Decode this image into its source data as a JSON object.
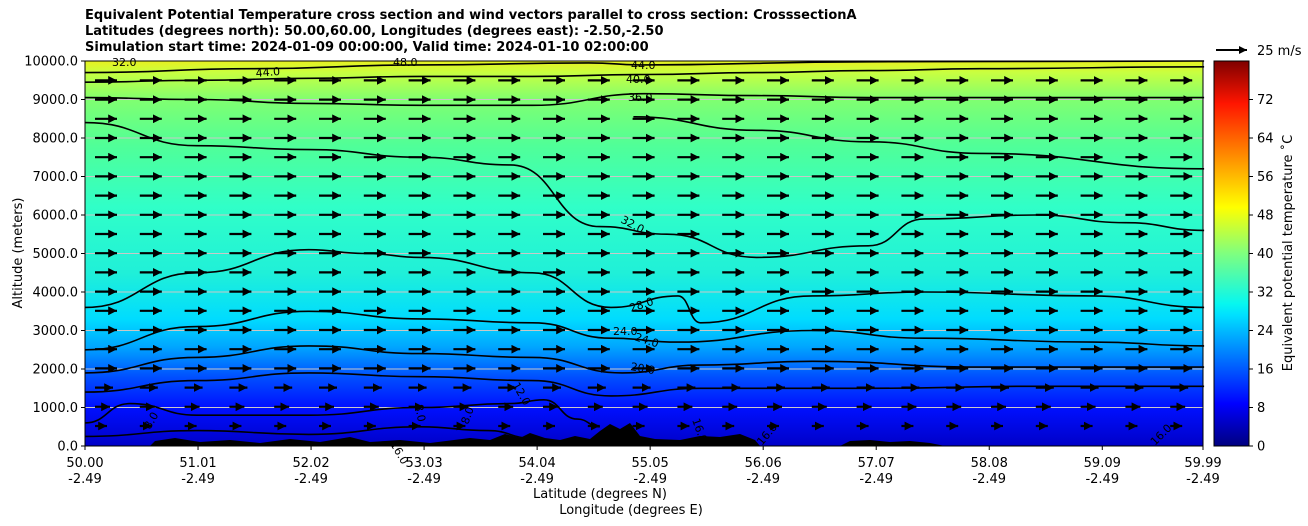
{
  "title_lines": [
    "Equivalent Potential Temperature cross section and wind vectors parallel to cross section: CrosssectionA",
    "Latitudes (degrees north): 50.00,60.00, Longitudes (degrees east): -2.50,-2.50",
    "Simulation start time: 2024-01-09 00:00:00, Valid time: 2024-01-10 02:00:00"
  ],
  "chart_data": {
    "type": "heatmap",
    "ylabel": "Altitude (meters)",
    "xlabel_lines": [
      "Latitude (degrees N)",
      "Longitude (degrees E)"
    ],
    "ylim": [
      0,
      10000
    ],
    "yticks": [
      "0.0",
      "1000.0",
      "2000.0",
      "3000.0",
      "4000.0",
      "5000.0",
      "6000.0",
      "7000.0",
      "8000.0",
      "9000.0",
      "10000.0"
    ],
    "xticks": [
      {
        "lat": "50.00",
        "lon": "-2.49"
      },
      {
        "lat": "51.01",
        "lon": "-2.49"
      },
      {
        "lat": "52.02",
        "lon": "-2.49"
      },
      {
        "lat": "53.03",
        "lon": "-2.49"
      },
      {
        "lat": "54.04",
        "lon": "-2.49"
      },
      {
        "lat": "55.05",
        "lon": "-2.49"
      },
      {
        "lat": "56.06",
        "lon": "-2.49"
      },
      {
        "lat": "57.07",
        "lon": "-2.49"
      },
      {
        "lat": "58.08",
        "lon": "-2.49"
      },
      {
        "lat": "59.09",
        "lon": "-2.49"
      },
      {
        "lat": "59.99",
        "lon": "-2.49"
      }
    ],
    "grid": "horizontal",
    "colorbar": {
      "label": "Equivalent potential temperature ˚C",
      "range": [
        0,
        80
      ],
      "ticks": [
        "0",
        "8",
        "16",
        "24",
        "32",
        "40",
        "48",
        "56",
        "64",
        "72"
      ],
      "colormap": "jet"
    },
    "wind_key": {
      "label": "25 m/s",
      "direction": "parallel to cross section"
    },
    "contour_labels": [
      "32.0",
      "44.0",
      "48.0",
      "44.0",
      "40.0",
      "36.0",
      "32.0",
      "28.0",
      "24.0",
      "24.0",
      "20.0",
      "12.0",
      "8.0",
      "8.0",
      "8.0",
      "16.0",
      "16.0",
      "16.0",
      "16.0"
    ],
    "contours": [
      {
        "level": 44,
        "points": [
          [
            50.0,
            9700
          ],
          [
            51.5,
            9800
          ],
          [
            53.0,
            9900
          ],
          [
            54.5,
            9950
          ],
          [
            55.0,
            9900
          ],
          [
            57.0,
            9980
          ],
          [
            60.0,
            10000
          ]
        ]
      },
      {
        "level": 40,
        "points": [
          [
            50.0,
            9450
          ],
          [
            51.0,
            9500
          ],
          [
            52.0,
            9550
          ],
          [
            53.0,
            9600
          ],
          [
            54.0,
            9600
          ],
          [
            55.0,
            9650
          ],
          [
            56.0,
            9700
          ],
          [
            57.0,
            9750
          ],
          [
            58.0,
            9800
          ],
          [
            60.0,
            9850
          ]
        ]
      },
      {
        "level": 36,
        "points": [
          [
            50.0,
            9050
          ],
          [
            51.0,
            9000
          ],
          [
            52.0,
            8900
          ],
          [
            53.0,
            8850
          ],
          [
            54.0,
            8850
          ],
          [
            55.0,
            9150
          ],
          [
            56.0,
            9100
          ],
          [
            57.0,
            9050
          ],
          [
            58.0,
            9050
          ],
          [
            60.0,
            9050
          ]
        ]
      },
      {
        "level": 32,
        "points": [
          [
            50.0,
            8400
          ],
          [
            51.0,
            7800
          ],
          [
            52.0,
            7700
          ],
          [
            53.0,
            7500
          ],
          [
            53.8,
            7300
          ],
          [
            54.6,
            5700
          ],
          [
            55.2,
            5500
          ],
          [
            56.0,
            4900
          ],
          [
            57.0,
            5200
          ],
          [
            57.5,
            5900
          ],
          [
            58.5,
            6000
          ],
          [
            59.3,
            5800
          ],
          [
            60.0,
            5600
          ]
        ]
      },
      {
        "level": 32,
        "points": [
          [
            54.9,
            8550
          ],
          [
            56.0,
            8200
          ],
          [
            57.0,
            7900
          ],
          [
            58.0,
            7600
          ],
          [
            60.0,
            7200
          ]
        ]
      },
      {
        "level": 28,
        "points": [
          [
            50.0,
            3600
          ],
          [
            51.0,
            4500
          ],
          [
            52.0,
            5100
          ],
          [
            52.5,
            5000
          ],
          [
            53.0,
            4900
          ],
          [
            54.0,
            4500
          ],
          [
            54.7,
            3600
          ],
          [
            55.3,
            3900
          ],
          [
            55.5,
            3200
          ],
          [
            56.5,
            3900
          ],
          [
            57.5,
            4000
          ],
          [
            59.0,
            3900
          ],
          [
            60.0,
            3600
          ]
        ]
      },
      {
        "level": 24,
        "points": [
          [
            50.0,
            2500
          ],
          [
            51.0,
            3100
          ],
          [
            52.0,
            3500
          ],
          [
            53.0,
            3300
          ],
          [
            54.0,
            3200
          ],
          [
            54.7,
            2800
          ],
          [
            55.3,
            2700
          ],
          [
            56.5,
            3000
          ],
          [
            57.5,
            2800
          ],
          [
            59.0,
            2700
          ],
          [
            60.0,
            2600
          ]
        ]
      },
      {
        "level": 20,
        "points": [
          [
            50.0,
            1900
          ],
          [
            51.0,
            2300
          ],
          [
            52.0,
            2600
          ],
          [
            53.0,
            2400
          ],
          [
            54.0,
            2300
          ],
          [
            54.8,
            1900
          ],
          [
            55.5,
            2100
          ],
          [
            56.5,
            2200
          ],
          [
            58.0,
            2050
          ],
          [
            60.0,
            2050
          ]
        ]
      },
      {
        "level": 16,
        "points": [
          [
            50.0,
            1400
          ],
          [
            51.0,
            1700
          ],
          [
            52.0,
            1900
          ],
          [
            53.0,
            1800
          ],
          [
            54.0,
            1700
          ],
          [
            54.7,
            1300
          ],
          [
            55.5,
            1500
          ],
          [
            57.0,
            1500
          ],
          [
            58.5,
            1550
          ],
          [
            60.0,
            1550
          ]
        ]
      },
      {
        "level": 12,
        "points": [
          [
            50.0,
            600
          ],
          [
            50.4,
            1100
          ],
          [
            51.0,
            800
          ],
          [
            52.0,
            800
          ],
          [
            53.0,
            1000
          ],
          [
            53.8,
            1100
          ],
          [
            54.1,
            1200
          ],
          [
            54.4,
            700
          ],
          [
            54.6,
            500
          ]
        ]
      },
      {
        "level": 8,
        "points": [
          [
            50.0,
            250
          ],
          [
            51.0,
            400
          ],
          [
            52.0,
            300
          ],
          [
            53.0,
            500
          ],
          [
            53.6,
            400
          ],
          [
            54.0,
            200
          ]
        ]
      }
    ]
  }
}
